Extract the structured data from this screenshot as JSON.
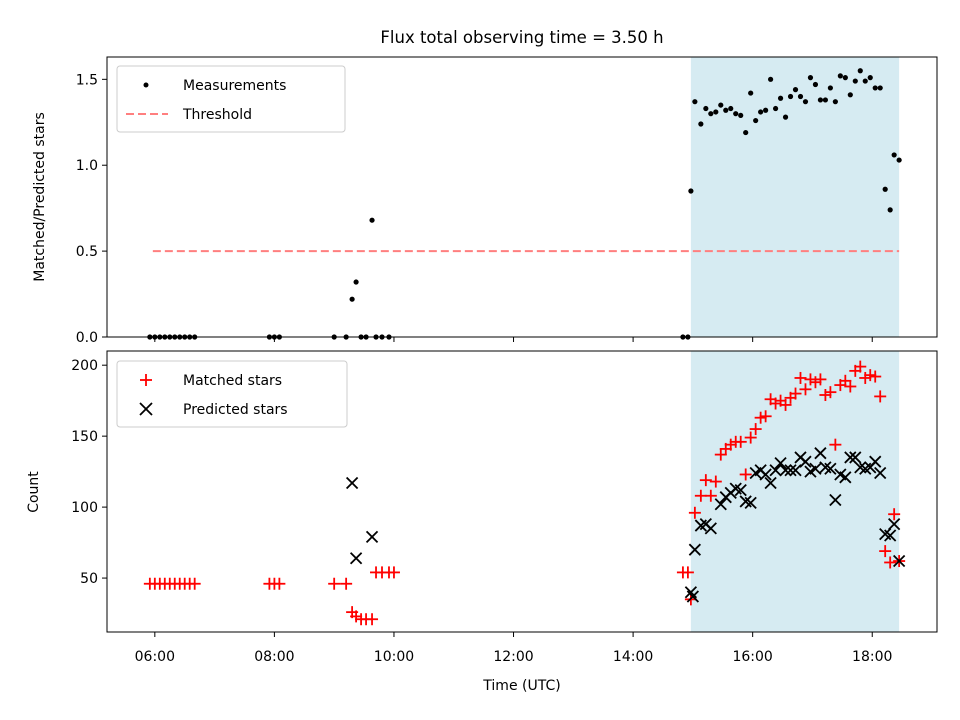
{
  "chart_data": [
    {
      "type": "scatter",
      "title": "Flux total observing time = 3.50 h",
      "ylabel": "Matched/Predicted stars",
      "ylim": [
        0,
        1.63
      ],
      "yticks": [
        "0.0",
        "0.5",
        "1.0",
        "1.5"
      ],
      "legend": [
        "Measurements",
        "Threshold"
      ],
      "legend_position": "upper left",
      "highlight_span": {
        "start": "14:58",
        "end": "18:27",
        "color": "#add8e6"
      },
      "threshold": {
        "name": "Threshold",
        "value": 0.5,
        "x_start": "05:58",
        "x_end": "18:27",
        "style": "dashed",
        "color": "#ff7f7f"
      },
      "series": [
        {
          "name": "Measurements",
          "color": "#000000",
          "marker": "dot",
          "points": [
            [
              "05:55",
              0
            ],
            [
              "06:00",
              0
            ],
            [
              "06:05",
              0
            ],
            [
              "06:10",
              0
            ],
            [
              "06:15",
              0
            ],
            [
              "06:20",
              0
            ],
            [
              "06:25",
              0
            ],
            [
              "06:30",
              0
            ],
            [
              "06:35",
              0
            ],
            [
              "06:40",
              0
            ],
            [
              "07:55",
              0
            ],
            [
              "08:00",
              0
            ],
            [
              "08:05",
              0
            ],
            [
              "09:00",
              0
            ],
            [
              "09:12",
              0
            ],
            [
              "09:18",
              0.22
            ],
            [
              "09:22",
              0.32
            ],
            [
              "09:27",
              0
            ],
            [
              "09:32",
              0
            ],
            [
              "09:38",
              0.68
            ],
            [
              "09:42",
              0
            ],
            [
              "09:48",
              0
            ],
            [
              "09:55",
              0
            ],
            [
              "14:50",
              0
            ],
            [
              "14:55",
              0
            ],
            [
              "14:58",
              0.85
            ],
            [
              "15:02",
              1.37
            ],
            [
              "15:08",
              1.24
            ],
            [
              "15:13",
              1.33
            ],
            [
              "15:18",
              1.3
            ],
            [
              "15:23",
              1.31
            ],
            [
              "15:28",
              1.35
            ],
            [
              "15:33",
              1.32
            ],
            [
              "15:38",
              1.33
            ],
            [
              "15:43",
              1.3
            ],
            [
              "15:48",
              1.29
            ],
            [
              "15:53",
              1.19
            ],
            [
              "15:58",
              1.42
            ],
            [
              "16:03",
              1.26
            ],
            [
              "16:08",
              1.31
            ],
            [
              "16:13",
              1.32
            ],
            [
              "16:18",
              1.5
            ],
            [
              "16:23",
              1.33
            ],
            [
              "16:28",
              1.39
            ],
            [
              "16:33",
              1.28
            ],
            [
              "16:38",
              1.4
            ],
            [
              "16:43",
              1.44
            ],
            [
              "16:48",
              1.4
            ],
            [
              "16:53",
              1.37
            ],
            [
              "16:58",
              1.51
            ],
            [
              "17:03",
              1.47
            ],
            [
              "17:08",
              1.38
            ],
            [
              "17:13",
              1.38
            ],
            [
              "17:18",
              1.45
            ],
            [
              "17:23",
              1.37
            ],
            [
              "17:28",
              1.52
            ],
            [
              "17:33",
              1.51
            ],
            [
              "17:38",
              1.41
            ],
            [
              "17:43",
              1.49
            ],
            [
              "17:48",
              1.55
            ],
            [
              "17:53",
              1.49
            ],
            [
              "17:58",
              1.51
            ],
            [
              "18:03",
              1.45
            ],
            [
              "18:08",
              1.45
            ],
            [
              "18:13",
              0.86
            ],
            [
              "18:18",
              0.74
            ],
            [
              "18:22",
              1.06
            ],
            [
              "18:27",
              1.03
            ]
          ]
        }
      ]
    },
    {
      "type": "scatter",
      "xlabel": "Time (UTC)",
      "ylabel": "Count",
      "ylim": [
        12,
        210
      ],
      "yticks": [
        "50",
        "100",
        "150",
        "200"
      ],
      "x_range": [
        "05:12",
        "19:05"
      ],
      "xticks": [
        "06:00",
        "08:00",
        "10:00",
        "12:00",
        "14:00",
        "16:00",
        "18:00"
      ],
      "legend": [
        "Matched stars",
        "Predicted stars"
      ],
      "legend_position": "upper left",
      "highlight_span": {
        "start": "14:58",
        "end": "18:27",
        "color": "#add8e6"
      },
      "series": [
        {
          "name": "Matched stars",
          "color": "#ff0000",
          "marker": "plus",
          "points": [
            [
              "05:55",
              46
            ],
            [
              "06:00",
              46
            ],
            [
              "06:05",
              46
            ],
            [
              "06:10",
              46
            ],
            [
              "06:15",
              46
            ],
            [
              "06:20",
              46
            ],
            [
              "06:25",
              46
            ],
            [
              "06:30",
              46
            ],
            [
              "06:35",
              46
            ],
            [
              "06:40",
              46
            ],
            [
              "07:55",
              46
            ],
            [
              "08:00",
              46
            ],
            [
              "08:05",
              46
            ],
            [
              "09:00",
              46
            ],
            [
              "09:12",
              46
            ],
            [
              "09:18",
              26
            ],
            [
              "09:22",
              23
            ],
            [
              "09:27",
              21
            ],
            [
              "09:32",
              21
            ],
            [
              "09:38",
              21
            ],
            [
              "09:42",
              54
            ],
            [
              "09:48",
              54
            ],
            [
              "09:55",
              54
            ],
            [
              "10:00",
              54
            ],
            [
              "14:50",
              54
            ],
            [
              "14:55",
              54
            ],
            [
              "14:58",
              35
            ],
            [
              "15:02",
              96
            ],
            [
              "15:08",
              108
            ],
            [
              "15:13",
              119
            ],
            [
              "15:18",
              108
            ],
            [
              "15:23",
              118
            ],
            [
              "15:28",
              137
            ],
            [
              "15:33",
              141
            ],
            [
              "15:38",
              144
            ],
            [
              "15:43",
              146
            ],
            [
              "15:48",
              146
            ],
            [
              "15:53",
              123
            ],
            [
              "15:58",
              149
            ],
            [
              "16:03",
              155
            ],
            [
              "16:08",
              163
            ],
            [
              "16:13",
              164
            ],
            [
              "16:18",
              176
            ],
            [
              "16:23",
              173
            ],
            [
              "16:28",
              175
            ],
            [
              "16:33",
              172
            ],
            [
              "16:38",
              177
            ],
            [
              "16:43",
              180
            ],
            [
              "16:48",
              191
            ],
            [
              "16:53",
              183
            ],
            [
              "16:58",
              190
            ],
            [
              "17:03",
              188
            ],
            [
              "17:08",
              190
            ],
            [
              "17:13",
              179
            ],
            [
              "17:18",
              181
            ],
            [
              "17:23",
              144
            ],
            [
              "17:28",
              186
            ],
            [
              "17:33",
              189
            ],
            [
              "17:38",
              185
            ],
            [
              "17:43",
              196
            ],
            [
              "17:48",
              199
            ],
            [
              "17:53",
              191
            ],
            [
              "17:58",
              193
            ],
            [
              "18:03",
              192
            ],
            [
              "18:08",
              178
            ],
            [
              "18:13",
              69
            ],
            [
              "18:18",
              61
            ],
            [
              "18:22",
              95
            ],
            [
              "18:27",
              62
            ]
          ]
        },
        {
          "name": "Predicted stars",
          "color": "#000000",
          "marker": "x",
          "points": [
            [
              "09:18",
              117
            ],
            [
              "09:22",
              64
            ],
            [
              "09:38",
              79
            ],
            [
              "14:58",
              40
            ],
            [
              "15:00",
              37
            ],
            [
              "15:02",
              70
            ],
            [
              "15:08",
              87
            ],
            [
              "15:13",
              88
            ],
            [
              "15:18",
              85
            ],
            [
              "15:28",
              102
            ],
            [
              "15:33",
              107
            ],
            [
              "15:38",
              110
            ],
            [
              "15:43",
              113
            ],
            [
              "15:48",
              112
            ],
            [
              "15:53",
              104
            ],
            [
              "15:58",
              103
            ],
            [
              "16:03",
              124
            ],
            [
              "16:08",
              126
            ],
            [
              "16:13",
              123
            ],
            [
              "16:18",
              117
            ],
            [
              "16:23",
              126
            ],
            [
              "16:28",
              131
            ],
            [
              "16:33",
              126
            ],
            [
              "16:38",
              126
            ],
            [
              "16:43",
              126
            ],
            [
              "16:48",
              135
            ],
            [
              "16:53",
              132
            ],
            [
              "16:58",
              125
            ],
            [
              "17:03",
              127
            ],
            [
              "17:08",
              138
            ],
            [
              "17:13",
              128
            ],
            [
              "17:18",
              127
            ],
            [
              "17:23",
              105
            ],
            [
              "17:28",
              123
            ],
            [
              "17:33",
              121
            ],
            [
              "17:38",
              135
            ],
            [
              "17:43",
              135
            ],
            [
              "17:48",
              128
            ],
            [
              "17:53",
              127
            ],
            [
              "17:58",
              128
            ],
            [
              "18:03",
              132
            ],
            [
              "18:08",
              124
            ],
            [
              "18:13",
              81
            ],
            [
              "18:18",
              80
            ],
            [
              "18:22",
              88
            ],
            [
              "18:27",
              62
            ]
          ]
        }
      ]
    }
  ]
}
